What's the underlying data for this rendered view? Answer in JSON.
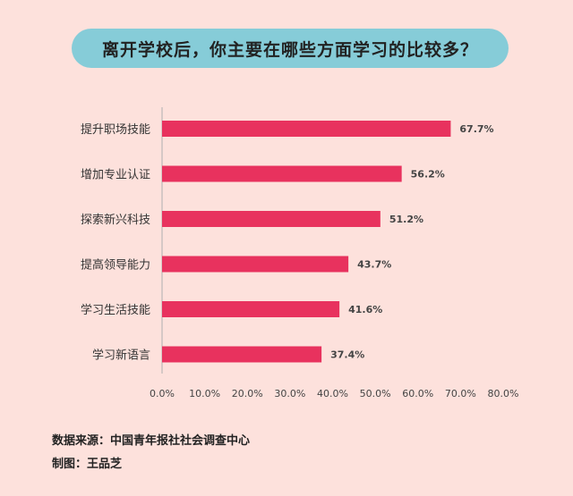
{
  "chart_data": {
    "type": "bar",
    "orientation": "horizontal",
    "title": "离开学校后，你主要在哪些方面学习的比较多？",
    "categories": [
      "提升职场技能",
      "增加专业认证",
      "探索新兴科技",
      "提高领导能力",
      "学习生活技能",
      "学习新语言"
    ],
    "values": [
      67.7,
      56.2,
      51.2,
      43.7,
      41.6,
      37.4
    ],
    "value_labels": [
      "67.7%",
      "56.2%",
      "51.2%",
      "43.7%",
      "41.6%",
      "37.4%"
    ],
    "xlim": [
      0,
      80
    ],
    "x_ticks": [
      0,
      10,
      20,
      30,
      40,
      50,
      60,
      70,
      80
    ],
    "x_tick_labels": [
      "0.0%",
      "10.0%",
      "20.0%",
      "30.0%",
      "40.0%",
      "50.0%",
      "60.0%",
      "70.0%",
      "80.0%"
    ],
    "xlabel": "",
    "ylabel": "",
    "grid": false,
    "bar_color": "#e8325e"
  },
  "footer": {
    "source": "数据来源：中国青年报社社会调查中心",
    "credit": "制图：王品芝"
  },
  "colors": {
    "background": "#fde1dc",
    "title_pill": "#86ccd8"
  }
}
